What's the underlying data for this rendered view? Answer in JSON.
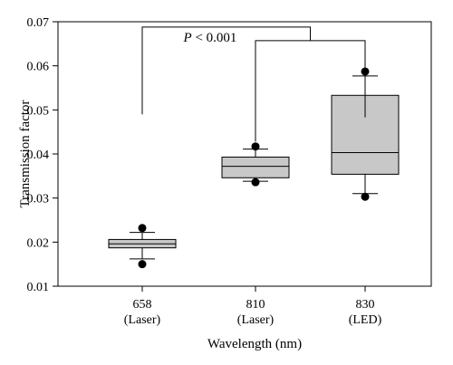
{
  "chart_data": {
    "type": "box",
    "xlabel": "Wavelength (nm)",
    "ylabel": "Transmission factor",
    "ylim": [
      0.01,
      0.07
    ],
    "y_ticks": [
      "0.01",
      "0.02",
      "0.03",
      "0.04",
      "0.05",
      "0.06",
      "0.07"
    ],
    "grid": false,
    "categories": [
      {
        "line1": "658",
        "line2": "(Laser)"
      },
      {
        "line1": "810",
        "line2": "(Laser)"
      },
      {
        "line1": "830",
        "line2": "(LED)"
      }
    ],
    "boxes": [
      {
        "whisker_low": 0.0162,
        "q1": 0.0187,
        "median": 0.0196,
        "q3": 0.0206,
        "whisker_high": 0.0222,
        "outliers": [
          0.015,
          0.0232
        ]
      },
      {
        "whisker_low": 0.0338,
        "q1": 0.0346,
        "median": 0.0372,
        "q3": 0.0393,
        "whisker_high": 0.0411,
        "outliers": [
          0.0336,
          0.0417
        ]
      },
      {
        "whisker_low": 0.031,
        "q1": 0.0354,
        "median": 0.0403,
        "q3": 0.0533,
        "whisker_high": 0.0577,
        "outliers": [
          0.0303,
          0.0587
        ]
      }
    ],
    "significance": {
      "label": "P < 0.001",
      "bracket_y": 0.0688,
      "left_drop_y": 0.049,
      "sub_bracket_y": 0.0657,
      "right_drop_y": 0.0483,
      "mid_drop_y": 0.0428
    }
  },
  "colors": {
    "box_fill": "#c8c8c8",
    "stroke": "#000000"
  }
}
